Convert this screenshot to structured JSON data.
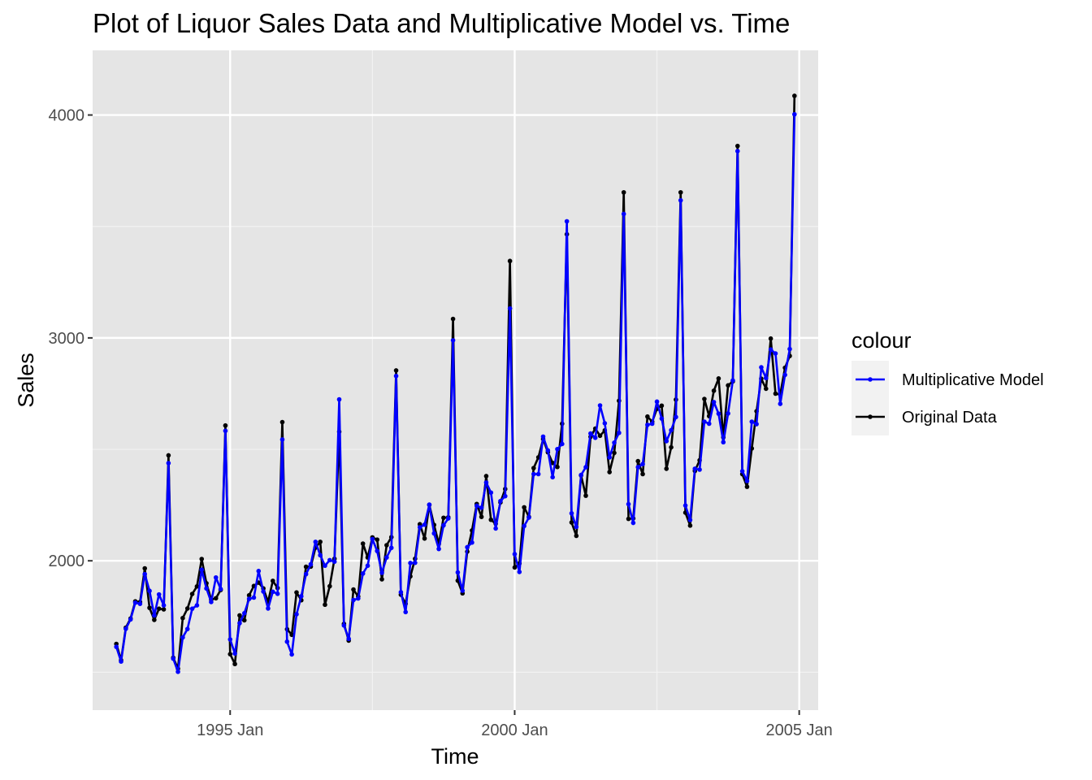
{
  "chart_data": {
    "type": "line",
    "title": "Plot of Liquor Sales Data and Multiplicative Model vs. Time",
    "xlabel": "Time",
    "ylabel": "Sales",
    "x_start": "1993 Jan",
    "frequency": "monthly",
    "xlim": [
      "1992 Aug",
      "2005 May"
    ],
    "ylim": [
      1330,
      4290
    ],
    "y_ticks": [
      2000,
      3000,
      4000
    ],
    "y_tick_labels": [
      "2000",
      "3000",
      "4000"
    ],
    "x_ticks": [
      "1995 Jan",
      "2000 Jan",
      "2005 Jan"
    ],
    "x_tick_labels": [
      "1995 Jan",
      "2000 Jan",
      "2005 Jan"
    ],
    "grid": true,
    "panel_background": "#e5e5e5",
    "legend": {
      "title": "colour",
      "placement": "right",
      "entries": [
        "Multiplicative Model",
        "Original Data"
      ]
    },
    "series": [
      {
        "name": "Original Data",
        "color": "#000000",
        "values": [
          1627,
          1554,
          1700,
          1741,
          1818,
          1815,
          1966,
          1789,
          1735,
          1785,
          1782,
          2473,
          1565,
          1516,
          1743,
          1786,
          1851,
          1885,
          2008,
          1899,
          1826,
          1832,
          1869,
          2607,
          1581,
          1537,
          1755,
          1733,
          1845,
          1887,
          1902,
          1876,
          1816,
          1910,
          1878,
          2622,
          1693,
          1668,
          1858,
          1823,
          1973,
          1974,
          2059,
          2085,
          1803,
          1886,
          2009,
          2579,
          1717,
          1642,
          1871,
          1840,
          2077,
          2015,
          2105,
          2095,
          1917,
          2070,
          2106,
          2854,
          1848,
          1807,
          1930,
          2009,
          2164,
          2100,
          2251,
          2161,
          2076,
          2193,
          2195,
          3085,
          1911,
          1854,
          2041,
          2136,
          2255,
          2197,
          2380,
          2184,
          2166,
          2262,
          2322,
          3345,
          1970,
          1988,
          2240,
          2197,
          2416,
          2464,
          2546,
          2487,
          2439,
          2421,
          2615,
          3465,
          2172,
          2112,
          2383,
          2292,
          2556,
          2593,
          2561,
          2585,
          2398,
          2484,
          2718,
          3653,
          2188,
          2190,
          2447,
          2389,
          2647,
          2624,
          2682,
          2696,
          2413,
          2509,
          2723,
          3653,
          2216,
          2158,
          2403,
          2451,
          2726,
          2649,
          2763,
          2818,
          2554,
          2787,
          2805,
          3861,
          2389,
          2332,
          2504,
          2671,
          2817,
          2772,
          2997,
          2750,
          2746,
          2866,
          2919,
          4086
        ]
      },
      {
        "name": "Multiplicative Model",
        "color": "#0000ff",
        "values": [
          1614,
          1548,
          1695,
          1737,
          1812,
          1807,
          1940,
          1865,
          1755,
          1849,
          1800,
          2438,
          1561,
          1502,
          1656,
          1694,
          1785,
          1800,
          1960,
          1876,
          1815,
          1925,
          1873,
          2583,
          1647,
          1584,
          1720,
          1765,
          1829,
          1835,
          1954,
          1862,
          1786,
          1861,
          1852,
          2544,
          1637,
          1580,
          1760,
          1841,
          1940,
          1984,
          2085,
          2025,
          1978,
          2003,
          1996,
          2724,
          1710,
          1650,
          1824,
          1831,
          1943,
          1978,
          2097,
          2044,
          1946,
          2015,
          2058,
          2829,
          1859,
          1770,
          1990,
          1991,
          2150,
          2162,
          2252,
          2123,
          2053,
          2159,
          2190,
          2989,
          1948,
          1866,
          2061,
          2082,
          2247,
          2238,
          2351,
          2306,
          2145,
          2268,
          2290,
          3132,
          2030,
          1950,
          2156,
          2194,
          2389,
          2389,
          2557,
          2495,
          2375,
          2501,
          2524,
          3523,
          2213,
          2152,
          2385,
          2420,
          2571,
          2552,
          2697,
          2617,
          2464,
          2530,
          2574,
          3556,
          2254,
          2170,
          2420,
          2434,
          2610,
          2615,
          2714,
          2638,
          2537,
          2586,
          2645,
          3617,
          2248,
          2183,
          2413,
          2409,
          2624,
          2615,
          2712,
          2660,
          2532,
          2661,
          2809,
          3838,
          2402,
          2358,
          2624,
          2613,
          2868,
          2820,
          2948,
          2930,
          2704,
          2834,
          2950,
          4003
        ]
      }
    ]
  }
}
